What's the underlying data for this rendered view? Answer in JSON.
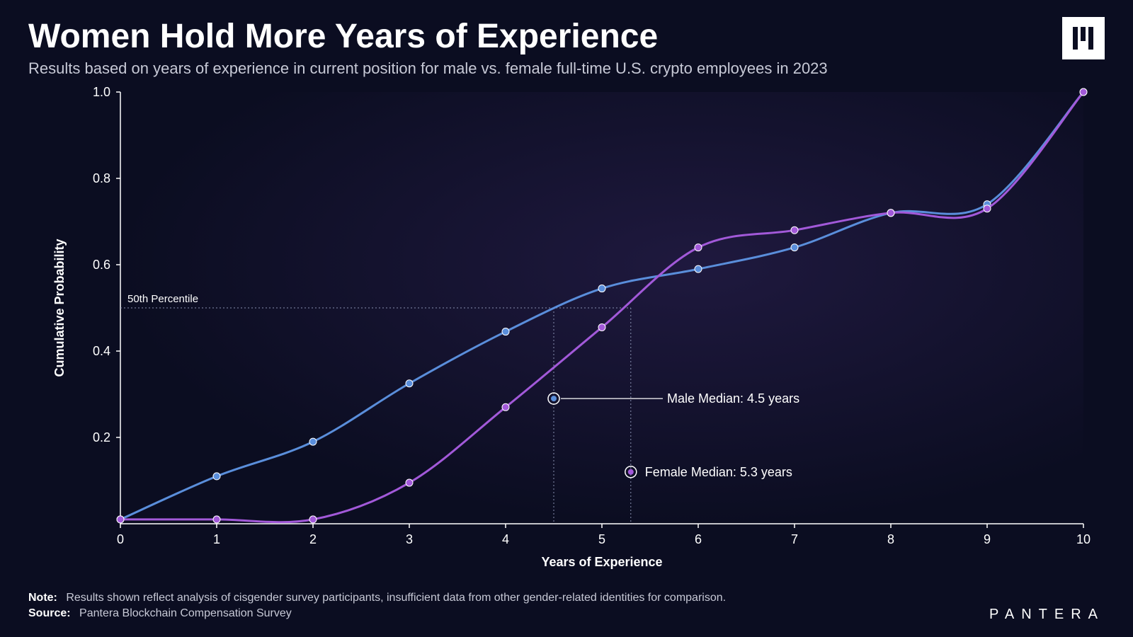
{
  "title": "Women Hold More Years of Experience",
  "subtitle": "Results based on years of experience in current position for male vs. female full-time U.S. crypto employees in 2023",
  "brand": "PANTERA",
  "footer": {
    "note_label": "Note:",
    "note_text": "Results shown reflect analysis of cisgender survey participants, insufficient data from other gender-related identities for comparison.",
    "source_label": "Source:",
    "source_text": "Pantera Blockchain Compensation Survey"
  },
  "chart": {
    "type": "line",
    "background_color": "#0b0d21",
    "plot_glow_color": "rgba(90,60,150,0.25)",
    "x_axis": {
      "label": "Years of Experience",
      "min": 0,
      "max": 10,
      "ticks": [
        0,
        1,
        2,
        3,
        4,
        5,
        6,
        7,
        8,
        9,
        10
      ],
      "tick_labels": [
        "0",
        "1",
        "2",
        "3",
        "4",
        "5",
        "6",
        "7",
        "8",
        "9",
        "10"
      ]
    },
    "y_axis": {
      "label": "Cumulative Probability",
      "min": 0,
      "max": 1,
      "ticks": [
        0.2,
        0.4,
        0.6,
        0.8,
        1.0
      ],
      "tick_labels": [
        "0.2",
        "0.4",
        "0.6",
        "0.8",
        "1.0"
      ]
    },
    "axis_color": "#ffffff",
    "grid_color": "#8890b0",
    "series": {
      "male": {
        "color": "#5a8edb",
        "line_width": 3,
        "marker_radius": 5,
        "points": [
          {
            "x": 0,
            "y": 0.01
          },
          {
            "x": 1,
            "y": 0.11
          },
          {
            "x": 2,
            "y": 0.19
          },
          {
            "x": 3,
            "y": 0.325
          },
          {
            "x": 4,
            "y": 0.445
          },
          {
            "x": 5,
            "y": 0.545
          },
          {
            "x": 6,
            "y": 0.59
          },
          {
            "x": 7,
            "y": 0.64
          },
          {
            "x": 8,
            "y": 0.72
          },
          {
            "x": 9,
            "y": 0.74
          },
          {
            "x": 10,
            "y": 1.0
          }
        ]
      },
      "female": {
        "color": "#a259d9",
        "line_width": 3,
        "marker_radius": 5,
        "points": [
          {
            "x": 0,
            "y": 0.01
          },
          {
            "x": 1,
            "y": 0.01
          },
          {
            "x": 2,
            "y": 0.01
          },
          {
            "x": 3,
            "y": 0.095
          },
          {
            "x": 4,
            "y": 0.27
          },
          {
            "x": 5,
            "y": 0.455
          },
          {
            "x": 6,
            "y": 0.64
          },
          {
            "x": 7,
            "y": 0.68
          },
          {
            "x": 8,
            "y": 0.72
          },
          {
            "x": 9,
            "y": 0.73
          },
          {
            "x": 10,
            "y": 1.0
          }
        ]
      }
    },
    "percentile_line": {
      "y": 0.5,
      "label": "50th Percentile"
    },
    "callouts": {
      "male": {
        "x": 4.5,
        "label": "Male Median: 4.5 years",
        "marker_y": 0.29,
        "text_x_offset": 160
      },
      "female": {
        "x": 5.3,
        "label": "Female Median: 5.3 years",
        "marker_y": 0.12,
        "text_x_offset": 20
      }
    }
  }
}
